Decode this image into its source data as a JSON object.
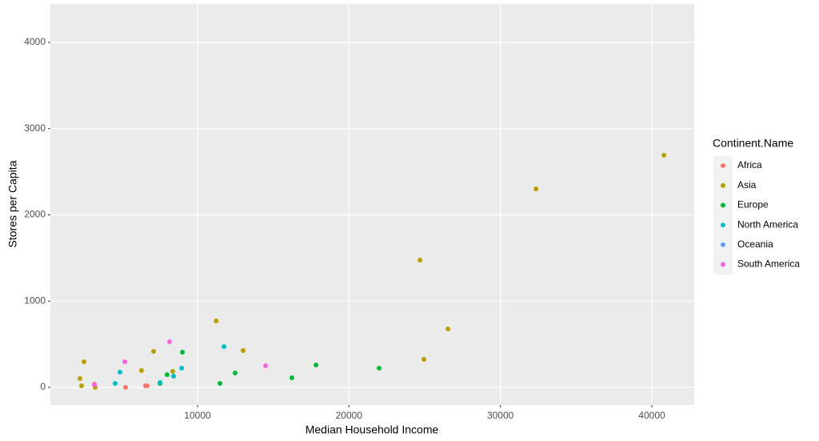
{
  "chart_data": {
    "type": "scatter",
    "x_label": "Median Household Income",
    "y_label": "Stores per Capita",
    "legend_title": "Continent.Name",
    "legend": "right",
    "xlim": [
      282,
      42800
    ],
    "ylim": [
      -204,
      4445
    ],
    "xticks": [
      10000,
      20000,
      30000,
      40000
    ],
    "yticks": [
      0,
      1000,
      2000,
      3000,
      4000
    ],
    "grid": true,
    "series": [
      {
        "name": "Africa",
        "color": "#F8766D",
        "x": [
          3187,
          5245,
          6567,
          6673
        ],
        "y": [
          37,
          0,
          19,
          19
        ]
      },
      {
        "name": "Asia",
        "color": "#B79F00",
        "x": [
          2235,
          2502,
          2341,
          3240,
          6300,
          7100,
          8360,
          11230,
          13010,
          24690,
          24950,
          26540,
          32350,
          40800
        ],
        "y": [
          102,
          297,
          19,
          0,
          195,
          418,
          186,
          770,
          427,
          1476,
          325,
          677,
          2301,
          2691
        ]
      },
      {
        "name": "Europe",
        "color": "#00BA38",
        "x": [
          7520,
          7990,
          9000,
          11480,
          12480,
          16230,
          17820,
          21990
        ],
        "y": [
          46,
          148,
          408,
          46,
          167,
          111,
          260,
          223
        ]
      },
      {
        "name": "North America",
        "color": "#00BFC4",
        "x": [
          4560,
          4880,
          7520,
          8420,
          8950,
          11750
        ],
        "y": [
          46,
          176,
          56,
          130,
          223,
          473
        ]
      },
      {
        "name": "Oceania",
        "color": "#619CFF",
        "x": [],
        "y": []
      },
      {
        "name": "South America",
        "color": "#F564E3",
        "x": [
          3190,
          5200,
          8150,
          14490
        ],
        "y": [
          28,
          297,
          529,
          251
        ]
      }
    ]
  }
}
